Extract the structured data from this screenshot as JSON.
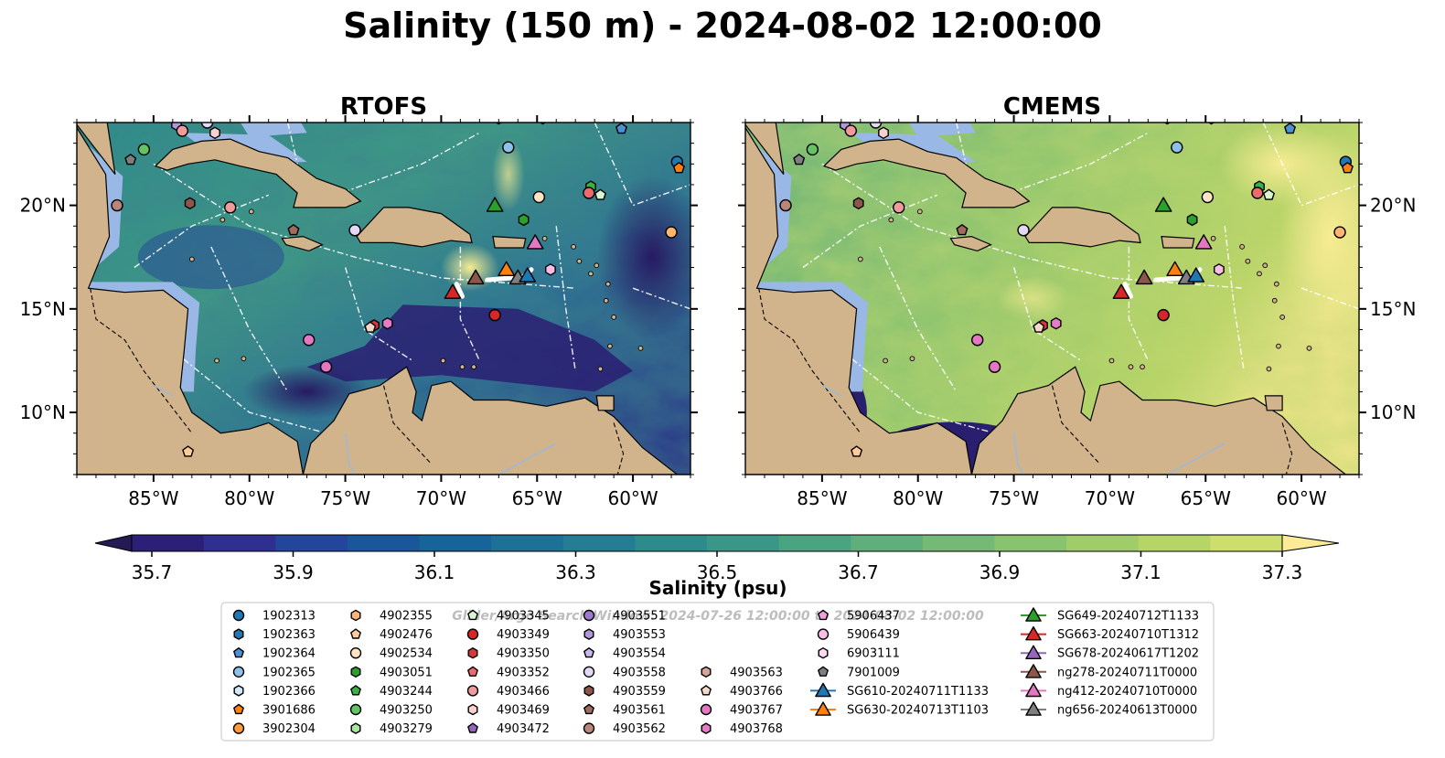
{
  "title": "Salinity (150 m) - 2024-08-02 12:00:00",
  "panels": [
    {
      "id": "rtofs",
      "title": "RTOFS"
    },
    {
      "id": "cmems",
      "title": "CMEMS"
    }
  ],
  "map_extent": {
    "lon": [
      -89,
      -57
    ],
    "lat": [
      7,
      24
    ]
  },
  "lon_ticks": [
    {
      "v": -85,
      "label": "85°W"
    },
    {
      "v": -80,
      "label": "80°W"
    },
    {
      "v": -75,
      "label": "75°W"
    },
    {
      "v": -70,
      "label": "70°W"
    },
    {
      "v": -65,
      "label": "65°W"
    },
    {
      "v": -60,
      "label": "60°W"
    }
  ],
  "lat_ticks": [
    {
      "v": 20,
      "label": "20°N"
    },
    {
      "v": 15,
      "label": "15°N"
    },
    {
      "v": 10,
      "label": "10°N"
    }
  ],
  "colorbar": {
    "label": "Salinity (psu)",
    "range": [
      35.7,
      37.3
    ],
    "ticks": [
      "35.7",
      "35.9",
      "36.1",
      "36.3",
      "36.5",
      "36.7",
      "36.9",
      "37.1",
      "37.3"
    ],
    "colors": [
      "#2c1f78",
      "#2f2f92",
      "#23459c",
      "#1a569a",
      "#17649a",
      "#1d7197",
      "#257d94",
      "#2e8b8c",
      "#3a9787",
      "#4aa381",
      "#5fae7b",
      "#74b976",
      "#8ac36f",
      "#a0cc6a",
      "#b7d466",
      "#cede6d"
    ],
    "extend_low": "#261a56",
    "extend_high": "#fbeb96"
  },
  "colors": {
    "land": "#d2b48c",
    "shelf": "#9ab8e6",
    "ocean_low": "#2b1d66",
    "ocean_mid": "#2f8b8a",
    "ocean_high": "#f5e98c"
  },
  "watermark": "Glider/Argo Search Window: 2024-07-26 12:00:00 to 2024-08-02 12:00:00",
  "legend": [
    {
      "label": "1902313",
      "marker": "circle",
      "color": "#1f77b4"
    },
    {
      "label": "1902363",
      "marker": "hexagon",
      "color": "#1f77b4"
    },
    {
      "label": "1902364",
      "marker": "pentagon",
      "color": "#4d90d6"
    },
    {
      "label": "1902365",
      "marker": "circle",
      "color": "#8ec1ea"
    },
    {
      "label": "1902366",
      "marker": "hexagon",
      "color": "#d1e8fb"
    },
    {
      "label": "3901686",
      "marker": "pentagon",
      "color": "#ff7f0e"
    },
    {
      "label": "3902304",
      "marker": "circle",
      "color": "#ff9a3c"
    },
    {
      "label": "4902355",
      "marker": "hexagon",
      "color": "#ffb470"
    },
    {
      "label": "4902476",
      "marker": "pentagon",
      "color": "#ffcc99"
    },
    {
      "label": "4902534",
      "marker": "circle",
      "color": "#ffe4c4"
    },
    {
      "label": "4903051",
      "marker": "hexagon",
      "color": "#2ca02c"
    },
    {
      "label": "4903244",
      "marker": "pentagon",
      "color": "#3cb043"
    },
    {
      "label": "4903250",
      "marker": "circle",
      "color": "#63c464"
    },
    {
      "label": "4903279",
      "marker": "hexagon",
      "color": "#a8e6a0"
    },
    {
      "label": "4903345",
      "marker": "pentagon",
      "color": "#d9f6d2"
    },
    {
      "label": "4903349",
      "marker": "circle",
      "color": "#d62728"
    },
    {
      "label": "4903350",
      "marker": "hexagon",
      "color": "#d9383a"
    },
    {
      "label": "4903352",
      "marker": "pentagon",
      "color": "#ee6a6a"
    },
    {
      "label": "4903466",
      "marker": "circle",
      "color": "#f19a9a"
    },
    {
      "label": "4903469",
      "marker": "hexagon",
      "color": "#f9cfcf"
    },
    {
      "label": "4903472",
      "marker": "pentagon",
      "color": "#9467bd"
    },
    {
      "label": "4903551",
      "marker": "circle",
      "color": "#9d78cf"
    },
    {
      "label": "4903553",
      "marker": "hexagon",
      "color": "#b197dc"
    },
    {
      "label": "4903554",
      "marker": "pentagon",
      "color": "#cbb8ea"
    },
    {
      "label": "4903558",
      "marker": "circle",
      "color": "#e4d8f6"
    },
    {
      "label": "4903559",
      "marker": "hexagon",
      "color": "#8c564b"
    },
    {
      "label": "4903561",
      "marker": "pentagon",
      "color": "#a06a5e"
    },
    {
      "label": "4903562",
      "marker": "circle",
      "color": "#b98679"
    },
    {
      "label": "4903563",
      "marker": "hexagon",
      "color": "#d2a69a"
    },
    {
      "label": "4903766",
      "marker": "pentagon",
      "color": "#f4d9c8"
    },
    {
      "label": "4903767",
      "marker": "circle",
      "color": "#e377c2"
    },
    {
      "label": "4903768",
      "marker": "hexagon",
      "color": "#e67bc8"
    },
    {
      "label": "5906437",
      "marker": "pentagon",
      "color": "#f19fd8"
    },
    {
      "label": "5906439",
      "marker": "circle",
      "color": "#f7bde6"
    },
    {
      "label": "6903111",
      "marker": "hexagon",
      "color": "#fbdaf2"
    },
    {
      "label": "7901009",
      "marker": "pentagon",
      "color": "#7f7f7f"
    },
    {
      "label": "SG610-20240711T1133",
      "marker": "triangle",
      "color": "#1f77b4"
    },
    {
      "label": "SG630-20240713T1103",
      "marker": "triangle",
      "color": "#ff7f0e"
    },
    {
      "label": "SG649-20240712T1133",
      "marker": "triangle",
      "color": "#2ca02c"
    },
    {
      "label": "SG663-20240710T1312",
      "marker": "triangle",
      "color": "#d62728"
    },
    {
      "label": "SG678-20240617T1202",
      "marker": "triangle",
      "color": "#9467bd"
    },
    {
      "label": "ng278-20240711T0000",
      "marker": "triangle",
      "color": "#8c564b"
    },
    {
      "label": "ng412-20240710T0000",
      "marker": "triangle",
      "color": "#e377c2"
    },
    {
      "label": "ng656-20240613T0000",
      "marker": "triangle",
      "color": "#7f7f7f"
    }
  ],
  "observations": [
    {
      "lon": -86.2,
      "lat": 24.3,
      "marker": "circle",
      "color": "#9d78cf"
    },
    {
      "lon": -83.8,
      "lat": 23.9,
      "marker": "hexagon",
      "color": "#b197dc"
    },
    {
      "lon": -83.5,
      "lat": 23.6,
      "marker": "circle",
      "color": "#f19a9a"
    },
    {
      "lon": -82.2,
      "lat": 24.0,
      "marker": "circle",
      "color": "#e4d8f6"
    },
    {
      "lon": -81.8,
      "lat": 23.5,
      "marker": "hexagon",
      "color": "#f9cfcf"
    },
    {
      "lon": -85.5,
      "lat": 22.7,
      "marker": "circle",
      "color": "#63c464"
    },
    {
      "lon": -86.2,
      "lat": 22.2,
      "marker": "pentagon",
      "color": "#7f7f7f"
    },
    {
      "lon": -67.0,
      "lat": 24.2,
      "marker": "hexagon",
      "color": "#d1e8fb"
    },
    {
      "lon": -64.7,
      "lat": 24.2,
      "marker": "hexagon",
      "color": "#1f77b4"
    },
    {
      "lon": -66.5,
      "lat": 22.8,
      "marker": "circle",
      "color": "#8ec1ea"
    },
    {
      "lon": -60.6,
      "lat": 23.7,
      "marker": "pentagon",
      "color": "#4d90d6"
    },
    {
      "lon": -57.7,
      "lat": 22.1,
      "marker": "circle",
      "color": "#1f77b4"
    },
    {
      "lon": -57.6,
      "lat": 21.8,
      "marker": "pentagon",
      "color": "#ff7f0e"
    },
    {
      "lon": -86.9,
      "lat": 20.0,
      "marker": "circle",
      "color": "#b98679"
    },
    {
      "lon": -83.1,
      "lat": 20.1,
      "marker": "hexagon",
      "color": "#8c564b"
    },
    {
      "lon": -81.0,
      "lat": 19.9,
      "marker": "circle",
      "color": "#f19a9a"
    },
    {
      "lon": -77.7,
      "lat": 18.8,
      "marker": "pentagon",
      "color": "#a06a5e"
    },
    {
      "lon": -74.5,
      "lat": 18.8,
      "marker": "circle",
      "color": "#e4d8f6"
    },
    {
      "lon": -67.2,
      "lat": 20.0,
      "marker": "triangle",
      "color": "#2ca02c"
    },
    {
      "lon": -64.9,
      "lat": 20.4,
      "marker": "circle",
      "color": "#ffe4c4"
    },
    {
      "lon": -65.7,
      "lat": 19.3,
      "marker": "hexagon",
      "color": "#2ca02c"
    },
    {
      "lon": -62.2,
      "lat": 20.9,
      "marker": "hexagon",
      "color": "#3cb043"
    },
    {
      "lon": -62.3,
      "lat": 20.6,
      "marker": "circle",
      "color": "#ee6a6a"
    },
    {
      "lon": -61.7,
      "lat": 20.5,
      "marker": "pentagon",
      "color": "#d9f6d2"
    },
    {
      "lon": -58.0,
      "lat": 18.7,
      "marker": "circle",
      "color": "#ffb470"
    },
    {
      "lon": -65.1,
      "lat": 18.2,
      "marker": "triangle",
      "color": "#e377c2"
    },
    {
      "lon": -66.6,
      "lat": 16.9,
      "marker": "triangle",
      "color": "#ff7f0e"
    },
    {
      "lon": -68.2,
      "lat": 16.5,
      "marker": "triangle",
      "color": "#8c564b"
    },
    {
      "lon": -66.0,
      "lat": 16.5,
      "marker": "triangle",
      "color": "#7f7f7f"
    },
    {
      "lon": -65.5,
      "lat": 16.6,
      "marker": "triangle",
      "color": "#1f77b4"
    },
    {
      "lon": -69.4,
      "lat": 15.8,
      "marker": "triangle",
      "color": "#d62728"
    },
    {
      "lon": -64.3,
      "lat": 16.9,
      "marker": "hexagon",
      "color": "#f7bde6"
    },
    {
      "lon": -67.2,
      "lat": 14.7,
      "marker": "circle",
      "color": "#d62728"
    },
    {
      "lon": -73.5,
      "lat": 14.2,
      "marker": "hexagon",
      "color": "#d9383a"
    },
    {
      "lon": -73.7,
      "lat": 14.1,
      "marker": "pentagon",
      "color": "#f4d9c8"
    },
    {
      "lon": -72.8,
      "lat": 14.3,
      "marker": "hexagon",
      "color": "#e67bc8"
    },
    {
      "lon": -76.9,
      "lat": 13.5,
      "marker": "circle",
      "color": "#e377c2"
    },
    {
      "lon": -76.0,
      "lat": 12.2,
      "marker": "circle",
      "color": "#e377c2"
    },
    {
      "lon": -83.2,
      "lat": 8.1,
      "marker": "pentagon",
      "color": "#ffcc99"
    }
  ]
}
